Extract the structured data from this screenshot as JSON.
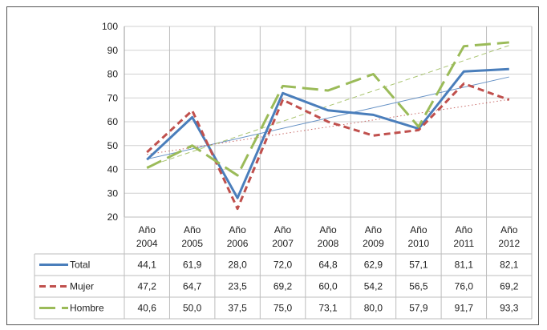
{
  "chart_data": {
    "type": "line",
    "categories": [
      "Año 2004",
      "Año 2005",
      "Año 2006",
      "Año 2007",
      "Año 2008",
      "Año 2009",
      "Año 2010",
      "Año 2011",
      "Año 2012"
    ],
    "category_lines": [
      [
        "Año",
        "2004"
      ],
      [
        "Año",
        "2005"
      ],
      [
        "Año",
        "2006"
      ],
      [
        "Año",
        "2007"
      ],
      [
        "Año",
        "2008"
      ],
      [
        "Año",
        "2009"
      ],
      [
        "Año",
        "2010"
      ],
      [
        "Año",
        "2011"
      ],
      [
        "Año",
        "2012"
      ]
    ],
    "ylim": [
      20,
      100
    ],
    "yticks": [
      20,
      30,
      40,
      50,
      60,
      70,
      80,
      90,
      100
    ],
    "grid": true,
    "legend": "table-below",
    "trendlines": true,
    "series": [
      {
        "name": "Total",
        "color": "#4a7ebb",
        "style": "solid",
        "values": [
          44.1,
          61.9,
          28.0,
          72.0,
          64.8,
          62.9,
          57.1,
          81.1,
          82.1
        ],
        "labels": [
          "44,1",
          "61,9",
          "28,0",
          "72,0",
          "64,8",
          "62,9",
          "57,1",
          "81,1",
          "82,1"
        ]
      },
      {
        "name": "Mujer",
        "color": "#c0504d",
        "style": "dashed",
        "values": [
          47.2,
          64.7,
          23.5,
          69.2,
          60.0,
          54.2,
          56.5,
          76.0,
          69.2
        ],
        "labels": [
          "47,2",
          "64,7",
          "23,5",
          "69,2",
          "60,0",
          "54,2",
          "56,5",
          "76,0",
          "69,2"
        ]
      },
      {
        "name": "Hombre",
        "color": "#9bbb59",
        "style": "long-dashed",
        "values": [
          40.6,
          50.0,
          37.5,
          75.0,
          73.1,
          80.0,
          57.9,
          91.7,
          93.3
        ],
        "labels": [
          "40,6",
          "50,0",
          "37,5",
          "75,0",
          "73,1",
          "80,0",
          "57,9",
          "91,7",
          "93,3"
        ]
      }
    ]
  }
}
